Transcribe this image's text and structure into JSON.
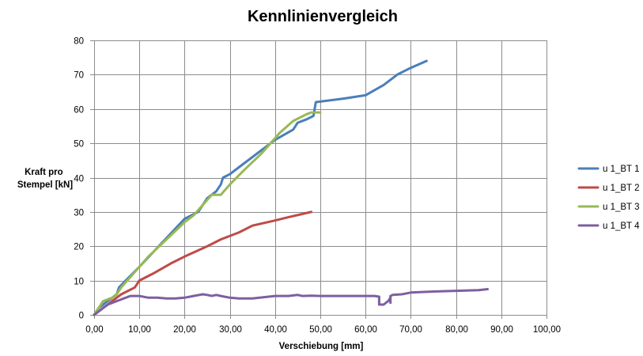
{
  "chart_data": {
    "type": "line",
    "title": "Kennlinienvergleich",
    "xlabel": "Verschiebung [mm]",
    "ylabel": [
      "Kraft pro",
      "Stempel [kN]"
    ],
    "xlim": [
      0,
      100
    ],
    "ylim": [
      0,
      80
    ],
    "x_ticks": [
      0,
      10,
      20,
      30,
      40,
      50,
      60,
      70,
      80,
      90,
      100
    ],
    "x_tick_labels": [
      "0,00",
      "10,00",
      "20,00",
      "30,00",
      "40,00",
      "50,00",
      "60,00",
      "70,00",
      "80,00",
      "90,00",
      "100,00"
    ],
    "y_ticks": [
      0,
      10,
      20,
      30,
      40,
      50,
      60,
      70,
      80
    ],
    "y_tick_labels": [
      "0",
      "10",
      "20",
      "30",
      "40",
      "50",
      "60",
      "70",
      "80"
    ],
    "grid": true,
    "legend_position": "right",
    "series": [
      {
        "name": "u 1_BT 1",
        "color": "#4a7ebb",
        "points": [
          [
            0,
            0
          ],
          [
            1,
            2
          ],
          [
            3,
            4
          ],
          [
            5,
            6
          ],
          [
            5.5,
            8
          ],
          [
            7,
            10
          ],
          [
            10,
            14
          ],
          [
            15,
            21
          ],
          [
            20,
            28
          ],
          [
            23,
            30
          ],
          [
            25,
            34
          ],
          [
            27,
            36
          ],
          [
            28,
            38
          ],
          [
            28.5,
            40
          ],
          [
            30,
            41
          ],
          [
            32,
            43
          ],
          [
            35,
            46
          ],
          [
            40,
            51
          ],
          [
            44,
            54
          ],
          [
            45,
            56
          ],
          [
            47,
            57
          ],
          [
            48.5,
            58
          ],
          [
            49,
            62
          ],
          [
            55,
            63
          ],
          [
            60,
            64
          ],
          [
            62,
            65.5
          ],
          [
            64,
            67
          ],
          [
            67,
            70
          ],
          [
            70,
            72
          ],
          [
            73.5,
            74
          ]
        ]
      },
      {
        "name": "u 1_BT 2",
        "color": "#be4b48",
        "points": [
          [
            0,
            0
          ],
          [
            2,
            2
          ],
          [
            4,
            4
          ],
          [
            6,
            6
          ],
          [
            9,
            8
          ],
          [
            10,
            10
          ],
          [
            13,
            12
          ],
          [
            17,
            15
          ],
          [
            20,
            17
          ],
          [
            25,
            20
          ],
          [
            28,
            22
          ],
          [
            32,
            24
          ],
          [
            35,
            26
          ],
          [
            40,
            27.5
          ],
          [
            43,
            28.5
          ],
          [
            48,
            30
          ]
        ]
      },
      {
        "name": "u 1_BT 3",
        "color": "#98b954",
        "points": [
          [
            0,
            0
          ],
          [
            1,
            2
          ],
          [
            2,
            4
          ],
          [
            4,
            5
          ],
          [
            5,
            6
          ],
          [
            6,
            8
          ],
          [
            8,
            11
          ],
          [
            12,
            17
          ],
          [
            16,
            22
          ],
          [
            20,
            27
          ],
          [
            22,
            29
          ],
          [
            24,
            32
          ],
          [
            26,
            35
          ],
          [
            28,
            35
          ],
          [
            30,
            38
          ],
          [
            33,
            42
          ],
          [
            37,
            47
          ],
          [
            41,
            53
          ],
          [
            44,
            56.5
          ],
          [
            47,
            58.5
          ],
          [
            48,
            59
          ],
          [
            50,
            59
          ]
        ]
      },
      {
        "name": "u 1_BT 4",
        "color": "#7d5fa0",
        "points": [
          [
            0,
            0
          ],
          [
            1,
            1
          ],
          [
            2,
            2
          ],
          [
            3,
            3
          ],
          [
            5,
            4
          ],
          [
            7,
            5
          ],
          [
            8,
            5.5
          ],
          [
            10,
            5.5
          ],
          [
            12,
            5
          ],
          [
            14,
            5
          ],
          [
            16,
            4.8
          ],
          [
            18,
            4.8
          ],
          [
            20,
            5
          ],
          [
            22,
            5.5
          ],
          [
            24,
            6
          ],
          [
            25,
            5.8
          ],
          [
            26,
            5.5
          ],
          [
            27,
            5.8
          ],
          [
            28,
            5.5
          ],
          [
            30,
            5
          ],
          [
            32,
            4.8
          ],
          [
            35,
            4.8
          ],
          [
            38,
            5.2
          ],
          [
            40,
            5.5
          ],
          [
            43,
            5.5
          ],
          [
            45,
            5.8
          ],
          [
            46,
            5.5
          ],
          [
            48,
            5.6
          ],
          [
            50,
            5.5
          ],
          [
            52,
            5.5
          ],
          [
            55,
            5.5
          ],
          [
            58,
            5.5
          ],
          [
            60,
            5.5
          ],
          [
            62,
            5.5
          ],
          [
            63,
            5.3
          ],
          [
            63,
            3
          ],
          [
            64,
            3
          ],
          [
            65,
            4
          ],
          [
            65.5,
            5
          ],
          [
            65.5,
            3.5
          ],
          [
            65.5,
            5.5
          ],
          [
            66,
            5.8
          ],
          [
            68,
            6
          ],
          [
            70,
            6.5
          ],
          [
            75,
            6.8
          ],
          [
            80,
            7
          ],
          [
            85,
            7.2
          ],
          [
            87,
            7.5
          ]
        ]
      }
    ]
  }
}
